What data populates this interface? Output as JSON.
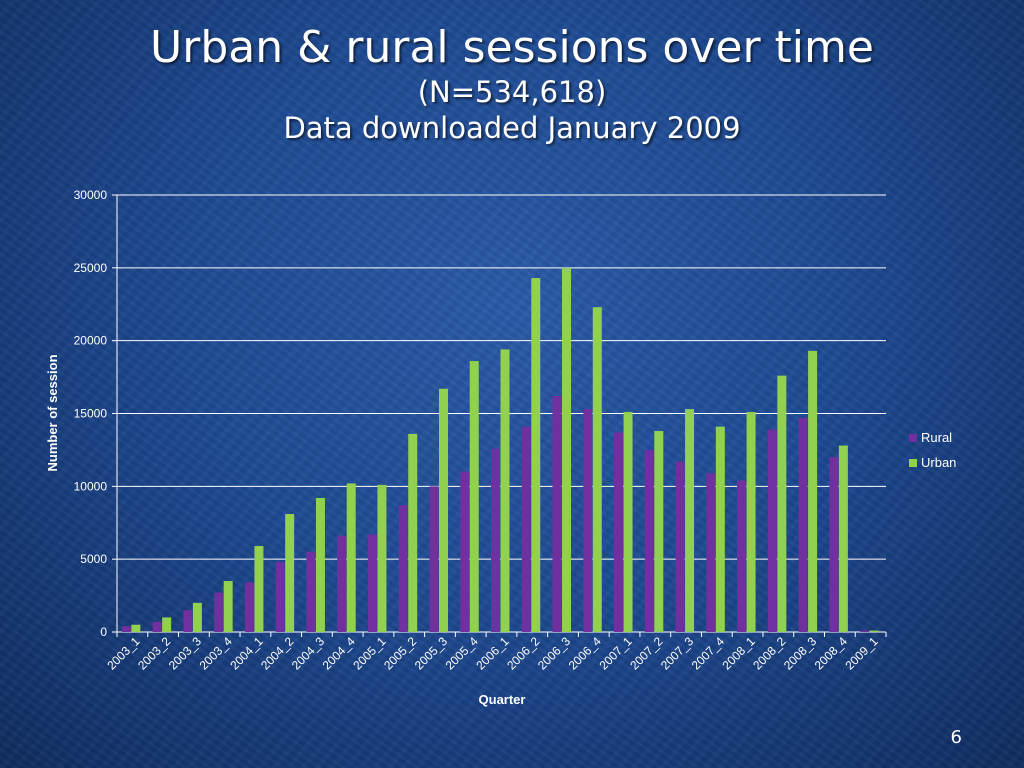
{
  "slide": {
    "title": "Urban & rural sessions over time",
    "subtitle_1": "(N=534,618)",
    "subtitle_2": "Data downloaded January 2009",
    "page_number": "6"
  },
  "chart_data": {
    "type": "bar",
    "xlabel": "Quarter",
    "ylabel": "Number of session",
    "ylim": [
      0,
      30000
    ],
    "yticks": [
      0,
      5000,
      10000,
      15000,
      20000,
      25000,
      30000
    ],
    "grid": true,
    "legend_position": "right",
    "categories": [
      "2003_1",
      "2003_2",
      "2003_3",
      "2003_4",
      "2004_1",
      "2004_2",
      "2004_3",
      "2004_4",
      "2005_1",
      "2005_2",
      "2005_3",
      "2005_4",
      "2006_1",
      "2006_2",
      "2006_3",
      "2006_4",
      "2007_1",
      "2007_2",
      "2007_3",
      "2007_4",
      "2008_1",
      "2008_2",
      "2008_3",
      "2008_4",
      "2009_1"
    ],
    "series": [
      {
        "name": "Rural",
        "color": "#7030a0",
        "values": [
          400,
          700,
          1500,
          2700,
          3400,
          4800,
          5500,
          6600,
          6700,
          8700,
          10000,
          11000,
          12600,
          14100,
          16200,
          15300,
          13700,
          12500,
          11700,
          10900,
          10400,
          13900,
          14700,
          12000,
          100
        ]
      },
      {
        "name": "Urban",
        "color": "#92d050",
        "values": [
          500,
          1000,
          2000,
          3500,
          5900,
          8100,
          9200,
          10200,
          10100,
          13600,
          16700,
          18600,
          19400,
          24300,
          25000,
          22300,
          15100,
          13800,
          15300,
          14100,
          15100,
          17600,
          19300,
          12800,
          100
        ]
      }
    ]
  }
}
